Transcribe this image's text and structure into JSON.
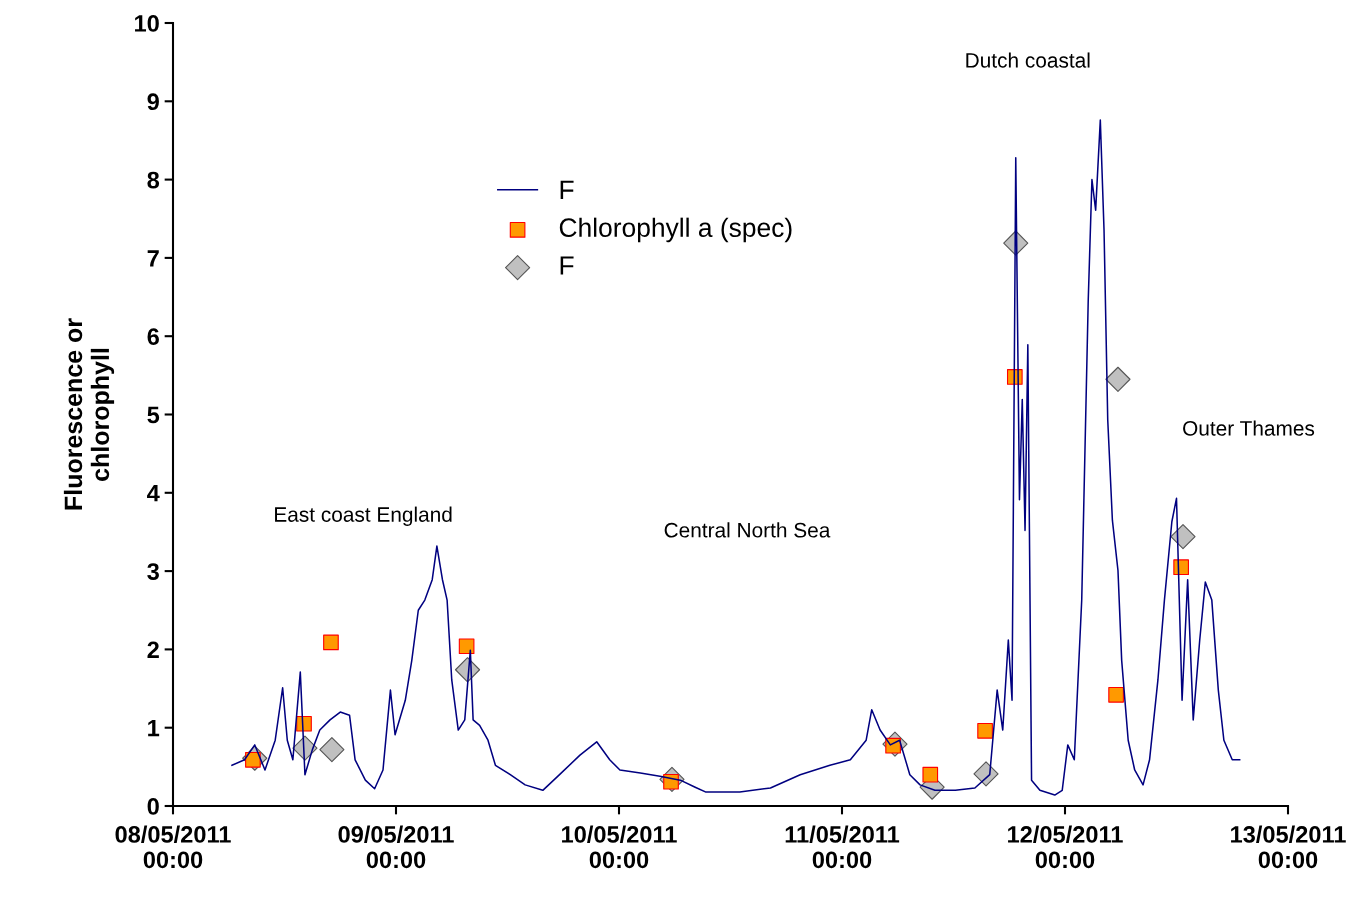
{
  "chart_data": {
    "type": "line",
    "ylabel": "Fluorescence or\nchlorophyll",
    "xlim": [
      "2011-05-08T00:00",
      "2011-05-13T00:00"
    ],
    "ylim": [
      0,
      10
    ],
    "xticks": [
      {
        "value": "2011-05-08T00:00",
        "label": "08/05/2011\n00:00"
      },
      {
        "value": "2011-05-09T00:00",
        "label": "09/05/2011\n00:00"
      },
      {
        "value": "2011-05-10T00:00",
        "label": "10/05/2011\n00:00"
      },
      {
        "value": "2011-05-11T00:00",
        "label": "11/05/2011\n00:00"
      },
      {
        "value": "2011-05-12T00:00",
        "label": "12/05/2011\n00:00"
      },
      {
        "value": "2011-05-13T00:00",
        "label": "13/05/2011\n00:00"
      }
    ],
    "yticks": [
      0,
      1,
      2,
      3,
      4,
      5,
      6,
      7,
      8,
      9,
      10
    ],
    "grid": false,
    "legend": "top left",
    "annotations": [
      "East coast England",
      "Central North Sea",
      "Dutch coastal",
      "Outer Thames"
    ],
    "series": [
      {
        "name": "F",
        "color": "#000080",
        "marker": "none",
        "x": [
          "2011-05-08T06:21",
          "2011-05-08T07:42",
          "2011-05-08T08:48",
          "2011-05-08T09:54",
          "2011-05-08T11:00",
          "2011-05-08T11:48",
          "2011-05-08T12:18",
          "2011-05-08T12:54",
          "2011-05-08T13:42",
          "2011-05-08T14:12",
          "2011-05-08T15:00",
          "2011-05-08T15:48",
          "2011-05-08T16:54",
          "2011-05-08T18:00",
          "2011-05-08T19:00",
          "2011-05-08T19:36",
          "2011-05-08T20:42",
          "2011-05-08T21:42",
          "2011-05-08T22:36",
          "2011-05-08T23:24",
          "2011-05-08T23:54",
          "2011-05-09T01:00",
          "2011-05-09T01:42",
          "2011-05-09T02:24",
          "2011-05-09T03:06",
          "2011-05-09T03:54",
          "2011-05-09T04:24",
          "2011-05-09T05:00",
          "2011-05-09T05:30",
          "2011-05-09T06:00",
          "2011-05-09T06:42",
          "2011-05-09T07:24",
          "2011-05-09T08:00",
          "2011-05-09T08:18",
          "2011-05-09T09:00",
          "2011-05-09T09:54",
          "2011-05-09T10:42",
          "2011-05-09T12:18",
          "2011-05-09T13:54",
          "2011-05-09T15:48",
          "2011-05-09T17:36",
          "2011-05-09T19:48",
          "2011-05-09T21:36",
          "2011-05-09T23:00",
          "2011-05-10T00:06",
          "2011-05-10T02:18",
          "2011-05-10T04:24",
          "2011-05-10T06:36",
          "2011-05-10T08:12",
          "2011-05-10T09:18",
          "2011-05-10T13:00",
          "2011-05-10T16:18",
          "2011-05-10T19:30",
          "2011-05-10T22:42",
          "2011-05-11T00:54",
          "2011-05-11T02:36",
          "2011-05-11T03:12",
          "2011-05-11T04:06",
          "2011-05-11T05:12",
          "2011-05-11T06:12",
          "2011-05-11T07:18",
          "2011-05-11T08:24",
          "2011-05-11T10:00",
          "2011-05-11T12:12",
          "2011-05-11T14:18",
          "2011-05-11T15:54",
          "2011-05-11T16:42",
          "2011-05-11T17:18",
          "2011-05-11T17:54",
          "2011-05-11T18:18",
          "2011-05-11T18:42",
          "2011-05-11T19:06",
          "2011-05-11T19:24",
          "2011-05-11T19:42",
          "2011-05-11T20:00",
          "2011-05-11T20:24",
          "2011-05-11T21:18",
          "2011-05-11T22:54",
          "2011-05-11T23:42",
          "2011-05-12T00:18",
          "2011-05-12T01:00",
          "2011-05-12T01:48",
          "2011-05-12T02:30",
          "2011-05-12T02:54",
          "2011-05-12T03:18",
          "2011-05-12T03:48",
          "2011-05-12T04:12",
          "2011-05-12T04:36",
          "2011-05-12T05:06",
          "2011-05-12T05:42",
          "2011-05-12T06:06",
          "2011-05-12T06:48",
          "2011-05-12T07:30",
          "2011-05-12T08:24",
          "2011-05-12T09:06",
          "2011-05-12T10:00",
          "2011-05-12T10:42",
          "2011-05-12T11:30",
          "2011-05-12T12:00",
          "2011-05-12T12:36",
          "2011-05-12T13:12",
          "2011-05-12T13:48",
          "2011-05-12T14:30",
          "2011-05-12T15:06",
          "2011-05-12T15:48",
          "2011-05-12T16:30",
          "2011-05-12T17:06",
          "2011-05-12T18:00",
          "2011-05-12T18:48"
        ],
        "values": [
          0.52,
          0.59,
          0.78,
          0.46,
          0.84,
          1.51,
          0.84,
          0.59,
          1.71,
          0.4,
          0.72,
          0.97,
          1.1,
          1.2,
          1.16,
          0.59,
          0.33,
          0.22,
          0.46,
          1.48,
          0.91,
          1.35,
          1.86,
          2.5,
          2.63,
          2.89,
          3.32,
          2.89,
          2.63,
          1.61,
          0.97,
          1.1,
          1.99,
          1.1,
          1.03,
          0.84,
          0.52,
          0.4,
          0.27,
          0.2,
          0.4,
          0.65,
          0.82,
          0.59,
          0.46,
          0.42,
          0.38,
          0.33,
          0.24,
          0.18,
          0.18,
          0.23,
          0.4,
          0.52,
          0.59,
          0.84,
          1.23,
          0.97,
          0.78,
          0.84,
          0.4,
          0.27,
          0.2,
          0.2,
          0.23,
          0.4,
          1.48,
          0.97,
          2.12,
          1.35,
          8.28,
          3.91,
          5.19,
          3.52,
          5.89,
          0.33,
          0.2,
          0.14,
          0.2,
          0.78,
          0.59,
          2.63,
          6.46,
          8.0,
          7.61,
          8.76,
          7.36,
          4.93,
          3.65,
          3.01,
          1.86,
          0.84,
          0.46,
          0.27,
          0.59,
          1.61,
          2.63,
          3.63,
          3.93,
          1.35,
          2.89,
          1.1,
          2.12,
          2.86,
          2.63,
          1.48,
          0.84,
          0.59,
          0.59
        ]
      },
      {
        "name": "Chlorophyll a (spec)",
        "type": "scatter",
        "color": "#ff9900",
        "marker": "square",
        "x": [
          "2011-05-08T08:36",
          "2011-05-08T14:06",
          "2011-05-08T17:00",
          "2011-05-09T07:36",
          "2011-05-10T05:36",
          "2011-05-11T05:30",
          "2011-05-11T09:30",
          "2011-05-11T15:24",
          "2011-05-11T18:36",
          "2011-05-12T05:30",
          "2011-05-12T12:30"
        ],
        "values": [
          0.59,
          1.05,
          2.09,
          2.04,
          0.31,
          0.77,
          0.4,
          0.96,
          5.48,
          1.42,
          3.05
        ]
      },
      {
        "name": "F",
        "type": "scatter",
        "color": "#c0c0c0",
        "marker": "diamond",
        "x": [
          "2011-05-08T08:48",
          "2011-05-08T14:12",
          "2011-05-08T17:06",
          "2011-05-09T07:42",
          "2011-05-10T05:42",
          "2011-05-11T05:42",
          "2011-05-11T09:42",
          "2011-05-11T15:30",
          "2011-05-11T18:42",
          "2011-05-12T05:42",
          "2011-05-12T12:42"
        ],
        "values": [
          0.61,
          0.74,
          0.72,
          1.74,
          0.34,
          0.79,
          0.24,
          0.41,
          7.19,
          5.45,
          3.44
        ]
      }
    ]
  }
}
